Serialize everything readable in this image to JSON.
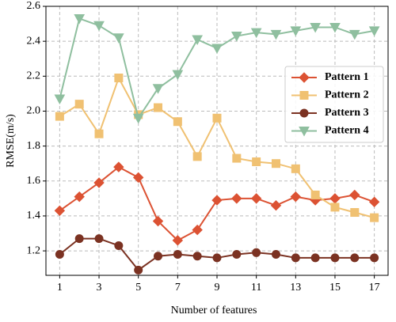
{
  "chart_data": {
    "type": "line",
    "xlabel": "Number of features",
    "ylabel": "RMSE(m/s)",
    "x": [
      1,
      2,
      3,
      4,
      5,
      6,
      7,
      8,
      9,
      10,
      11,
      12,
      13,
      14,
      15,
      16,
      17
    ],
    "xlim": [
      0.3,
      17.7
    ],
    "xticks": [
      1,
      3,
      5,
      7,
      9,
      11,
      13,
      15,
      17
    ],
    "ylim": [
      1.06,
      2.6
    ],
    "yticks": [
      {
        "value": 1.2,
        "label": "1.2"
      },
      {
        "value": 1.4,
        "label": "1.4"
      },
      {
        "value": 1.6,
        "label": "1.6"
      },
      {
        "value": 1.8,
        "label": "1.8"
      },
      {
        "value": 2.0,
        "label": "2.0"
      },
      {
        "value": 2.2,
        "label": "2.2"
      },
      {
        "value": 2.4,
        "label": "2.4"
      },
      {
        "value": 2.6,
        "label": "2.6"
      }
    ],
    "grid": true,
    "legend": "upper right",
    "series": [
      {
        "name": "Pattern 1",
        "color": "#dc5233",
        "marker": "diamond",
        "values": [
          1.43,
          1.51,
          1.59,
          1.68,
          1.62,
          1.37,
          1.26,
          1.32,
          1.49,
          1.5,
          1.5,
          1.46,
          1.51,
          1.49,
          1.5,
          1.52,
          1.48
        ]
      },
      {
        "name": "Pattern 2",
        "color": "#f0c172",
        "marker": "square",
        "values": [
          1.97,
          2.04,
          1.87,
          2.19,
          1.98,
          2.02,
          1.94,
          1.74,
          1.96,
          1.73,
          1.71,
          1.7,
          1.67,
          1.52,
          1.45,
          1.42,
          1.39
        ]
      },
      {
        "name": "Pattern 3",
        "color": "#7b3222",
        "marker": "circle",
        "values": [
          1.18,
          1.27,
          1.27,
          1.23,
          1.09,
          1.17,
          1.18,
          1.17,
          1.16,
          1.18,
          1.19,
          1.18,
          1.16,
          1.16,
          1.16,
          1.16,
          1.16
        ]
      },
      {
        "name": "Pattern 4",
        "color": "#8fbf9f",
        "marker": "triangle-down",
        "values": [
          2.07,
          2.53,
          2.49,
          2.42,
          1.96,
          2.13,
          2.21,
          2.41,
          2.36,
          2.43,
          2.45,
          2.44,
          2.46,
          2.48,
          2.48,
          2.44,
          2.46
        ]
      }
    ]
  }
}
